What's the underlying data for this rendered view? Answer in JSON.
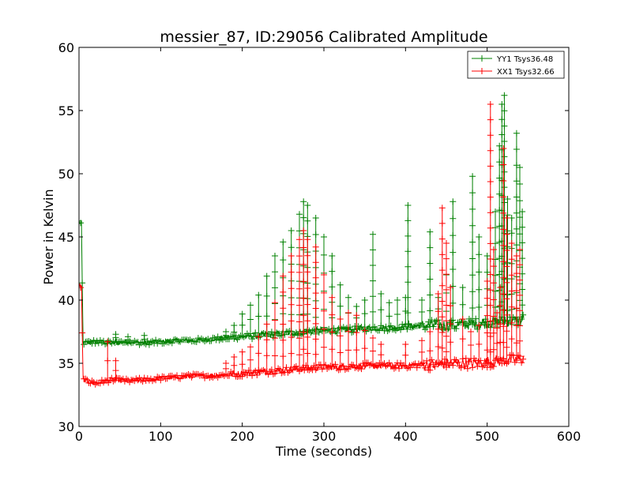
{
  "chart_data": {
    "type": "line",
    "title": "messier_87, ID:29056 Calibrated Amplitude",
    "xlabel": "Time (seconds)",
    "ylabel": "Power in Kelvin",
    "xlim": [
      0,
      600
    ],
    "ylim": [
      30,
      60
    ],
    "xticks": [
      0,
      100,
      200,
      300,
      400,
      500,
      600
    ],
    "yticks": [
      30,
      35,
      40,
      45,
      50,
      55,
      60
    ],
    "grid": false,
    "legend_position": "top-right",
    "marker": "+",
    "series": [
      {
        "name": "YY1 Tsys36.48",
        "color": "#008000",
        "points": [
          [
            0,
            46.2
          ],
          [
            3,
            46.0
          ],
          [
            5,
            36.6
          ],
          [
            20,
            36.7
          ],
          [
            40,
            36.6
          ],
          [
            60,
            36.7
          ],
          [
            80,
            36.6
          ],
          [
            100,
            36.7
          ],
          [
            120,
            36.8
          ],
          [
            140,
            36.8
          ],
          [
            160,
            36.9
          ],
          [
            180,
            37.0
          ],
          [
            200,
            37.1
          ],
          [
            220,
            37.2
          ],
          [
            240,
            37.3
          ],
          [
            260,
            37.4
          ],
          [
            280,
            37.5
          ],
          [
            300,
            37.6
          ],
          [
            320,
            37.6
          ],
          [
            340,
            37.7
          ],
          [
            360,
            37.8
          ],
          [
            380,
            37.8
          ],
          [
            400,
            37.9
          ],
          [
            420,
            38.0
          ],
          [
            440,
            38.0
          ],
          [
            460,
            38.0
          ],
          [
            480,
            38.1
          ],
          [
            500,
            38.2
          ],
          [
            520,
            38.3
          ],
          [
            540,
            38.4
          ],
          [
            545,
            38.5
          ]
        ],
        "spikes": [
          [
            45,
            37.3
          ],
          [
            60,
            37.1
          ],
          [
            80,
            37.2
          ],
          [
            180,
            37.5
          ],
          [
            190,
            38.0
          ],
          [
            200,
            38.9
          ],
          [
            210,
            39.6
          ],
          [
            220,
            40.4
          ],
          [
            230,
            41.9
          ],
          [
            240,
            43.5
          ],
          [
            250,
            44.6
          ],
          [
            260,
            45.5
          ],
          [
            270,
            46.8
          ],
          [
            275,
            47.8
          ],
          [
            280,
            47.5
          ],
          [
            290,
            46.5
          ],
          [
            300,
            45.0
          ],
          [
            310,
            43.5
          ],
          [
            320,
            41.2
          ],
          [
            330,
            40.2
          ],
          [
            340,
            39.5
          ],
          [
            350,
            40.0
          ],
          [
            360,
            45.2
          ],
          [
            370,
            40.5
          ],
          [
            380,
            39.8
          ],
          [
            390,
            40.0
          ],
          [
            400,
            40.2
          ],
          [
            403,
            47.5
          ],
          [
            420,
            40.0
          ],
          [
            430,
            45.4
          ],
          [
            440,
            40.2
          ],
          [
            450,
            42.0
          ],
          [
            458,
            47.8
          ],
          [
            470,
            41.0
          ],
          [
            482,
            49.8
          ],
          [
            490,
            45.0
          ],
          [
            500,
            43.5
          ],
          [
            510,
            47.0
          ],
          [
            515,
            52.2
          ],
          [
            518,
            55.5
          ],
          [
            521,
            56.2
          ],
          [
            525,
            48.0
          ],
          [
            530,
            46.5
          ],
          [
            536,
            53.2
          ],
          [
            540,
            50.5
          ],
          [
            543,
            47.0
          ]
        ]
      },
      {
        "name": "XX1 Tsys32.66",
        "color": "#ff0000",
        "points": [
          [
            0,
            41.2
          ],
          [
            3,
            41.0
          ],
          [
            5,
            33.7
          ],
          [
            20,
            33.4
          ],
          [
            40,
            33.7
          ],
          [
            60,
            33.6
          ],
          [
            80,
            33.7
          ],
          [
            100,
            33.8
          ],
          [
            120,
            33.9
          ],
          [
            140,
            34.0
          ],
          [
            160,
            34.0
          ],
          [
            180,
            34.1
          ],
          [
            200,
            34.2
          ],
          [
            220,
            34.3
          ],
          [
            240,
            34.4
          ],
          [
            260,
            34.5
          ],
          [
            280,
            34.6
          ],
          [
            300,
            34.7
          ],
          [
            320,
            34.7
          ],
          [
            340,
            34.8
          ],
          [
            360,
            34.8
          ],
          [
            380,
            34.8
          ],
          [
            400,
            34.8
          ],
          [
            420,
            34.9
          ],
          [
            440,
            34.9
          ],
          [
            460,
            35.0
          ],
          [
            480,
            35.0
          ],
          [
            500,
            35.1
          ],
          [
            520,
            35.2
          ],
          [
            540,
            35.3
          ],
          [
            545,
            35.4
          ]
        ],
        "spikes": [
          [
            35,
            36.7
          ],
          [
            45,
            35.2
          ],
          [
            180,
            35.0
          ],
          [
            190,
            35.5
          ],
          [
            200,
            35.9
          ],
          [
            210,
            36.3
          ],
          [
            220,
            37.1
          ],
          [
            230,
            38.1
          ],
          [
            240,
            39.8
          ],
          [
            250,
            41.9
          ],
          [
            260,
            43.5
          ],
          [
            270,
            44.8
          ],
          [
            275,
            45.5
          ],
          [
            280,
            44.8
          ],
          [
            290,
            44.2
          ],
          [
            300,
            42.0
          ],
          [
            310,
            40.2
          ],
          [
            320,
            38.5
          ],
          [
            330,
            39.0
          ],
          [
            340,
            38.8
          ],
          [
            350,
            37.6
          ],
          [
            360,
            37.0
          ],
          [
            370,
            36.5
          ],
          [
            400,
            36.5
          ],
          [
            420,
            36.8
          ],
          [
            430,
            37.5
          ],
          [
            440,
            40.5
          ],
          [
            445,
            47.3
          ],
          [
            450,
            44.5
          ],
          [
            455,
            41.0
          ],
          [
            470,
            38.5
          ],
          [
            480,
            37.5
          ],
          [
            490,
            38.0
          ],
          [
            500,
            41.5
          ],
          [
            504,
            55.5
          ],
          [
            508,
            44.0
          ],
          [
            512,
            39.0
          ],
          [
            516,
            41.0
          ],
          [
            520,
            52.0
          ],
          [
            524,
            46.5
          ],
          [
            530,
            44.5
          ],
          [
            536,
            43.5
          ],
          [
            540,
            44.0
          ]
        ]
      }
    ]
  }
}
